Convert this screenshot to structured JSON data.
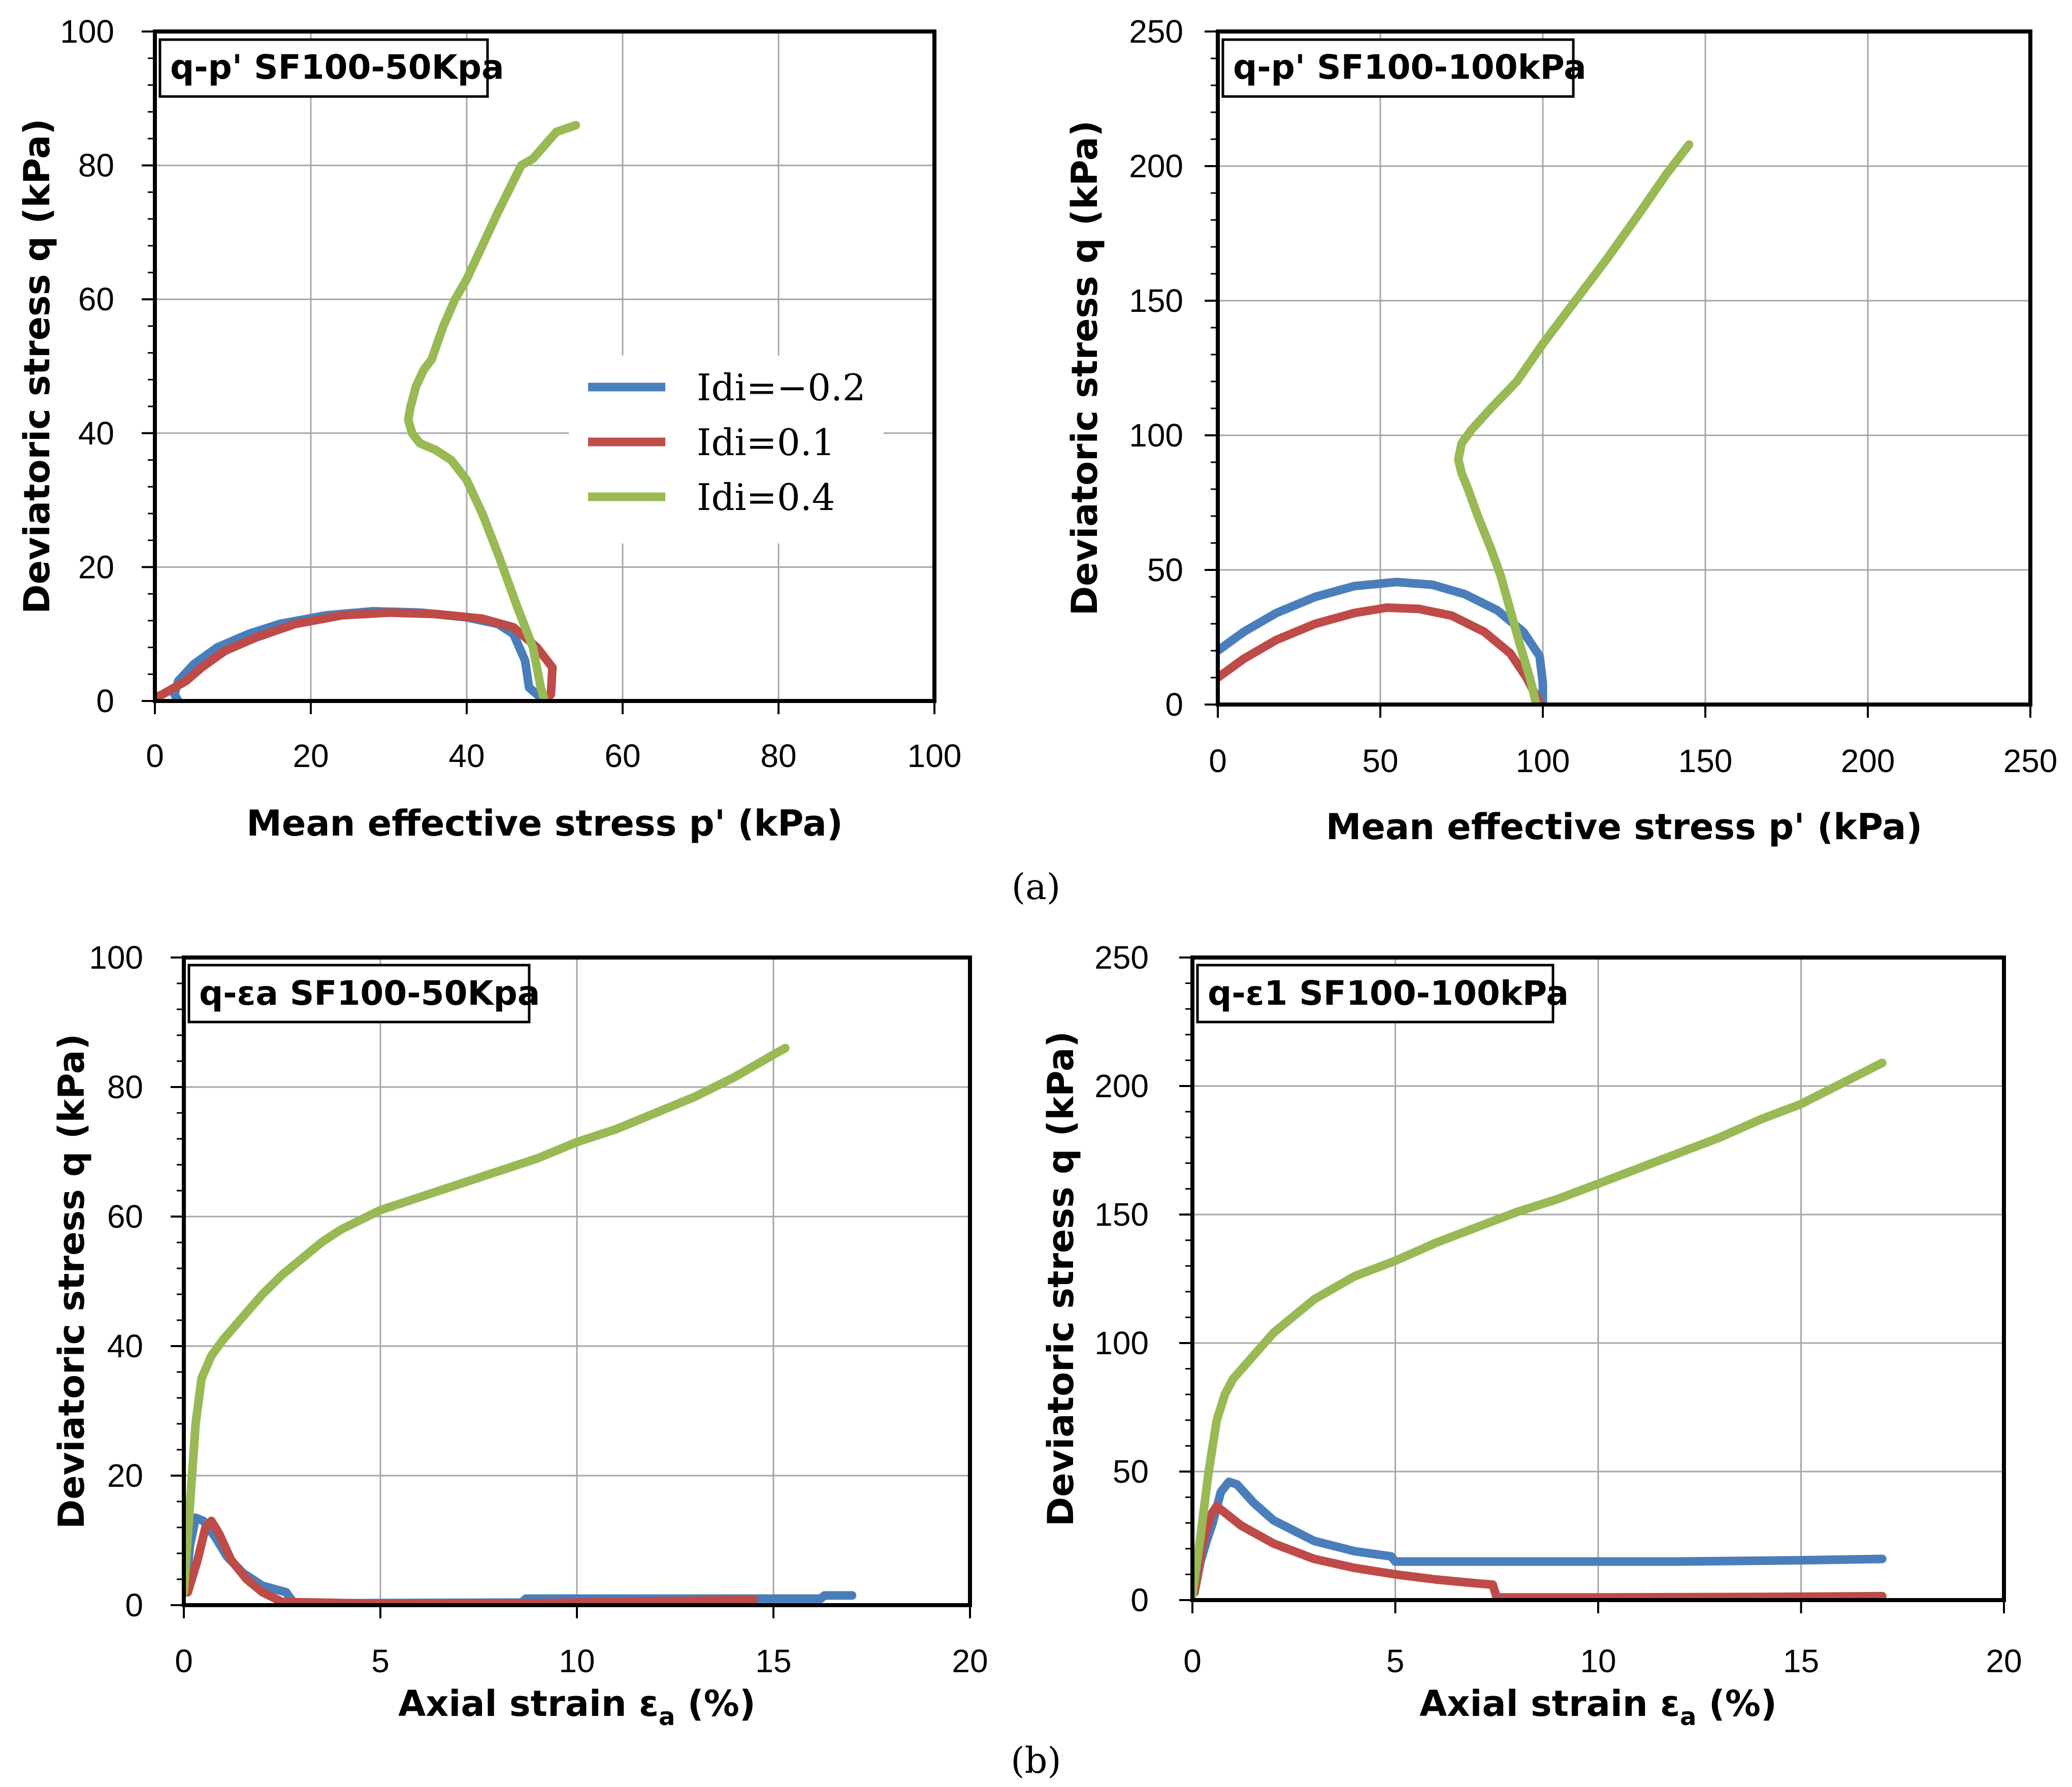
{
  "captions": [
    "(a)",
    "(b)"
  ],
  "colors": {
    "idi_m02": "#4a7ebb",
    "idi_01": "#be4b48",
    "idi_04": "#98b954",
    "grid": "#a6a6a6",
    "frame": "#000000"
  },
  "chart_data": [
    {
      "type": "line",
      "title": "q-p' SF100-50Kpa",
      "xlabel": "Mean effective stress p' (kPa)",
      "ylabel": "Deviatoric stress q (kPa)",
      "xlim": [
        0,
        100
      ],
      "ylim": [
        0,
        100
      ],
      "xticks": [
        0,
        20,
        40,
        60,
        80,
        100
      ],
      "yticks": [
        0,
        20,
        40,
        60,
        80,
        100
      ],
      "grid": true,
      "legend": {
        "position": "center-right",
        "entries": [
          "Idi=−0.2",
          "Idi=0.1",
          "Idi=0.4"
        ]
      },
      "series": [
        {
          "name": "Idi=−0.2",
          "points": [
            [
              50,
              0
            ],
            [
              48,
              2
            ],
            [
              47.5,
              6
            ],
            [
              46,
              10
            ],
            [
              44,
              11.5
            ],
            [
              40,
              12.5
            ],
            [
              34,
              13.2
            ],
            [
              28,
              13.4
            ],
            [
              22,
              12.8
            ],
            [
              16,
              11.5
            ],
            [
              12,
              10
            ],
            [
              8,
              8
            ],
            [
              5,
              5.5
            ],
            [
              3,
              3
            ],
            [
              2.5,
              1
            ],
            [
              3,
              0
            ]
          ]
        },
        {
          "name": "Idi=0.1",
          "points": [
            [
              50,
              0
            ],
            [
              50.8,
              1
            ],
            [
              51,
              5
            ],
            [
              49,
              8
            ],
            [
              46,
              11
            ],
            [
              42,
              12.3
            ],
            [
              36,
              13
            ],
            [
              30,
              13.2
            ],
            [
              24,
              12.8
            ],
            [
              18,
              11.5
            ],
            [
              13,
              9.5
            ],
            [
              9,
              7.5
            ],
            [
              6,
              5
            ],
            [
              4,
              3
            ],
            [
              2.5,
              2
            ],
            [
              1,
              1
            ],
            [
              0,
              0.5
            ]
          ]
        },
        {
          "name": "Idi=0.4",
          "points": [
            [
              50,
              0
            ],
            [
              49.5,
              2
            ],
            [
              48.5,
              8
            ],
            [
              46.5,
              14
            ],
            [
              44,
              22
            ],
            [
              42,
              28
            ],
            [
              40,
              33
            ],
            [
              38,
              36
            ],
            [
              36,
              37.5
            ],
            [
              34,
              38.5
            ],
            [
              33,
              40
            ],
            [
              32.5,
              42
            ],
            [
              32.8,
              44
            ],
            [
              33.5,
              47
            ],
            [
              34.5,
              49.5
            ],
            [
              35.5,
              51
            ],
            [
              37,
              56
            ],
            [
              38.5,
              60
            ],
            [
              40,
              63
            ],
            [
              42,
              68
            ],
            [
              44,
              73
            ],
            [
              45.5,
              76.5
            ],
            [
              47,
              80
            ],
            [
              48.5,
              81
            ],
            [
              50,
              83
            ],
            [
              51.5,
              85
            ],
            [
              54,
              86
            ]
          ]
        }
      ]
    },
    {
      "type": "line",
      "title": "q-p' SF100-100kPa",
      "xlabel": "Mean effective stress p' (kPa)",
      "ylabel": "Deviatoric stress q (kPa)",
      "xlim": [
        0,
        250
      ],
      "ylim": [
        0,
        250
      ],
      "xticks": [
        0,
        50,
        100,
        150,
        200,
        250
      ],
      "yticks": [
        0,
        50,
        100,
        150,
        200,
        250
      ],
      "grid": true,
      "series": [
        {
          "name": "Idi=−0.2",
          "points": [
            [
              0,
              20
            ],
            [
              8,
              27
            ],
            [
              18,
              34
            ],
            [
              30,
              40
            ],
            [
              42,
              44
            ],
            [
              55,
              45.5
            ],
            [
              66,
              44.5
            ],
            [
              76,
              41
            ],
            [
              86,
              35
            ],
            [
              94,
              27
            ],
            [
              99,
              18
            ],
            [
              100,
              8
            ],
            [
              100,
              0
            ]
          ]
        },
        {
          "name": "Idi=0.1",
          "points": [
            [
              0,
              10
            ],
            [
              8,
              17
            ],
            [
              18,
              24
            ],
            [
              30,
              30
            ],
            [
              42,
              34
            ],
            [
              52,
              36
            ],
            [
              62,
              35.5
            ],
            [
              72,
              33
            ],
            [
              82,
              27
            ],
            [
              90,
              19
            ],
            [
              95,
              10
            ],
            [
              98,
              3
            ],
            [
              99,
              0
            ]
          ]
        },
        {
          "name": "Idi=0.4",
          "points": [
            [
              98,
              0
            ],
            [
              96,
              10
            ],
            [
              93,
              22
            ],
            [
              90,
              35
            ],
            [
              87,
              48
            ],
            [
              84,
              58
            ],
            [
              80,
              70
            ],
            [
              77,
              80
            ],
            [
              75,
              86
            ],
            [
              74,
              91
            ],
            [
              75,
              97
            ],
            [
              78,
              102
            ],
            [
              84,
              110
            ],
            [
              92,
              120
            ],
            [
              100,
              134
            ],
            [
              110,
              150
            ],
            [
              120,
              166
            ],
            [
              130,
              183
            ],
            [
              138,
              197
            ],
            [
              145,
              208
            ]
          ]
        }
      ]
    },
    {
      "type": "line",
      "title": "q-εa SF100-50Kpa",
      "xlabel": "Axial strain εa (%)",
      "xlabel_main": "Axial strain ε",
      "xlabel_sub": "a",
      "xlabel_tail": " (%)",
      "ylabel": "Deviatoric stress q (kPa)",
      "xlim": [
        0,
        20
      ],
      "ylim": [
        0,
        100
      ],
      "xticks": [
        0,
        5,
        10,
        15,
        20
      ],
      "yticks": [
        0,
        20,
        40,
        60,
        80,
        100
      ],
      "grid": true,
      "series": [
        {
          "name": "Idi=−0.2",
          "points": [
            [
              0.05,
              2
            ],
            [
              0.15,
              9
            ],
            [
              0.3,
              13.5
            ],
            [
              0.5,
              13
            ],
            [
              0.8,
              10.5
            ],
            [
              1.1,
              7.5
            ],
            [
              1.5,
              5
            ],
            [
              2,
              3
            ],
            [
              2.6,
              2
            ],
            [
              2.8,
              0.3
            ],
            [
              4,
              0.3
            ],
            [
              8.6,
              0.4
            ],
            [
              8.7,
              1
            ],
            [
              12,
              1
            ],
            [
              16.2,
              1
            ],
            [
              16.3,
              1.5
            ],
            [
              17,
              1.5
            ]
          ]
        },
        {
          "name": "Idi=0.1",
          "points": [
            [
              0.1,
              2
            ],
            [
              0.35,
              7
            ],
            [
              0.55,
              12
            ],
            [
              0.7,
              13
            ],
            [
              0.9,
              11
            ],
            [
              1.2,
              7
            ],
            [
              1.6,
              4
            ],
            [
              2,
              2
            ],
            [
              2.5,
              0.5
            ],
            [
              5,
              0.2
            ],
            [
              9,
              0.3
            ],
            [
              12,
              0.6
            ],
            [
              14.5,
              0.8
            ]
          ]
        },
        {
          "name": "Idi=0.4",
          "points": [
            [
              0,
              2
            ],
            [
              0.15,
              15
            ],
            [
              0.3,
              28
            ],
            [
              0.45,
              35
            ],
            [
              0.7,
              38.5
            ],
            [
              1,
              41
            ],
            [
              1.5,
              44.5
            ],
            [
              2,
              48
            ],
            [
              2.5,
              51
            ],
            [
              3,
              53.5
            ],
            [
              3.5,
              56
            ],
            [
              4,
              58
            ],
            [
              5,
              61
            ],
            [
              6,
              63
            ],
            [
              7,
              65
            ],
            [
              8,
              67
            ],
            [
              9,
              69
            ],
            [
              10,
              71.5
            ],
            [
              11,
              73.5
            ],
            [
              12,
              76
            ],
            [
              13,
              78.5
            ],
            [
              14,
              81.5
            ],
            [
              15,
              85
            ],
            [
              15.3,
              86
            ]
          ]
        }
      ]
    },
    {
      "type": "line",
      "title": "q-ε1 SF100-100kPa",
      "xlabel": "Axial strain εa (%)",
      "xlabel_main": "Axial strain ε",
      "xlabel_sub": "a",
      "xlabel_tail": " (%)",
      "ylabel": "Deviatoric stress q (kPa)",
      "xlim": [
        0,
        20
      ],
      "ylim": [
        0,
        250
      ],
      "xticks": [
        0,
        5,
        10,
        15,
        20
      ],
      "yticks": [
        0,
        50,
        100,
        150,
        200,
        250
      ],
      "grid": true,
      "series": [
        {
          "name": "Idi=−0.2",
          "points": [
            [
              0.05,
              3
            ],
            [
              0.2,
              15
            ],
            [
              0.35,
              23
            ],
            [
              0.5,
              30
            ],
            [
              0.7,
              42
            ],
            [
              0.9,
              46
            ],
            [
              1.1,
              45
            ],
            [
              1.5,
              38
            ],
            [
              2,
              31
            ],
            [
              3,
              23
            ],
            [
              4,
              19
            ],
            [
              4.9,
              17
            ],
            [
              5,
              15
            ],
            [
              8,
              15
            ],
            [
              12,
              15
            ],
            [
              15,
              15.5
            ],
            [
              17,
              16
            ]
          ]
        },
        {
          "name": "Idi=0.1",
          "points": [
            [
              0.05,
              3
            ],
            [
              0.25,
              22
            ],
            [
              0.45,
              33
            ],
            [
              0.6,
              36.5
            ],
            [
              0.8,
              34
            ],
            [
              1.2,
              29
            ],
            [
              2,
              22
            ],
            [
              3,
              16
            ],
            [
              4,
              12.5
            ],
            [
              5,
              10
            ],
            [
              6,
              8
            ],
            [
              7,
              6.5
            ],
            [
              7.4,
              6
            ],
            [
              7.5,
              1
            ],
            [
              10,
              1
            ],
            [
              14,
              1.2
            ],
            [
              17,
              1.5
            ]
          ]
        },
        {
          "name": "Idi=0.4",
          "points": [
            [
              0,
              2
            ],
            [
              0.2,
              25
            ],
            [
              0.4,
              50
            ],
            [
              0.6,
              70
            ],
            [
              0.8,
              80
            ],
            [
              1,
              86
            ],
            [
              1.5,
              95
            ],
            [
              2,
              104
            ],
            [
              3,
              117
            ],
            [
              4,
              126
            ],
            [
              5,
              132
            ],
            [
              6,
              139
            ],
            [
              7,
              145
            ],
            [
              8,
              151
            ],
            [
              9,
              156
            ],
            [
              10,
              162
            ],
            [
              11,
              168
            ],
            [
              12,
              174
            ],
            [
              13,
              180
            ],
            [
              14,
              187
            ],
            [
              15,
              193
            ],
            [
              16,
              201
            ],
            [
              17,
              209
            ]
          ]
        }
      ]
    }
  ]
}
